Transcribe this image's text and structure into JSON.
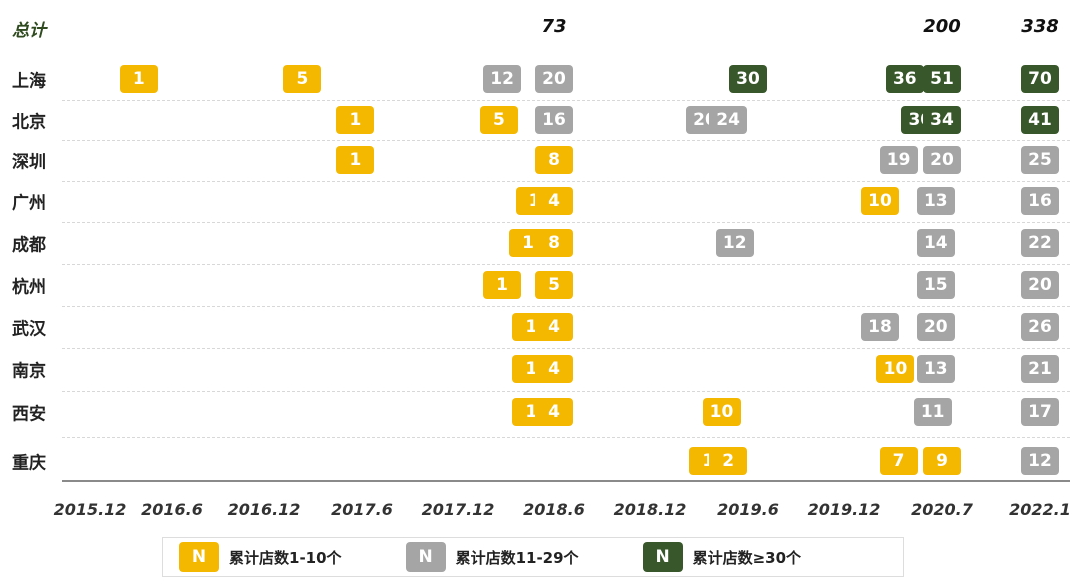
{
  "chart_data": {
    "type": "table",
    "title": "",
    "total_label": "总计",
    "x_ticks": [
      "2015.12",
      "2016.6",
      "2016.12",
      "2017.6",
      "2017.12",
      "2018.6",
      "2018.12",
      "2019.6",
      "2019.12",
      "2020.7",
      "2022.1"
    ],
    "totals": [
      {
        "x": "2018.6",
        "value": "73"
      },
      {
        "x": "2020.7",
        "value": "200"
      },
      {
        "x": "2022.1",
        "value": "338"
      }
    ],
    "rows": [
      {
        "city": "上海",
        "points": [
          {
            "x": 2016.0,
            "value": 1
          },
          {
            "x": 2016.7,
            "value": 5
          },
          {
            "x": 2017.8,
            "value": 12
          },
          {
            "x": 2018.6,
            "value": 20
          },
          {
            "x": 2019.6,
            "value": 30
          },
          {
            "x": 2020.1,
            "value": 36
          },
          {
            "x": 2020.7,
            "value": 51
          },
          {
            "x": 2022.1,
            "value": 70
          }
        ]
      },
      {
        "city": "北京",
        "points": [
          {
            "x": 2017.5,
            "value": 1
          },
          {
            "x": 2017.75,
            "value": 5
          },
          {
            "x": 2018.6,
            "value": 16
          },
          {
            "x": 2018.95,
            "value": 20
          },
          {
            "x": 2019.3,
            "value": 24
          },
          {
            "x": 2020.35,
            "value": 30
          },
          {
            "x": 2020.7,
            "value": 34
          },
          {
            "x": 2022.1,
            "value": 41
          }
        ]
      },
      {
        "city": "深圳",
        "points": [
          {
            "x": 2017.5,
            "value": 1
          },
          {
            "x": 2018.6,
            "value": 8
          },
          {
            "x": 2020.0,
            "value": 19
          },
          {
            "x": 2020.7,
            "value": 20
          },
          {
            "x": 2022.1,
            "value": 25
          }
        ]
      },
      {
        "city": "广州",
        "points": [
          {
            "x": 2018.3,
            "value": 1
          },
          {
            "x": 2018.6,
            "value": 4
          },
          {
            "x": 2019.7,
            "value": 10
          },
          {
            "x": 2020.6,
            "value": 13
          },
          {
            "x": 2022.1,
            "value": 16
          }
        ]
      },
      {
        "city": "成都",
        "points": [
          {
            "x": 2018.2,
            "value": 1
          },
          {
            "x": 2018.6,
            "value": 8
          },
          {
            "x": 2019.4,
            "value": 12
          },
          {
            "x": 2020.6,
            "value": 14
          },
          {
            "x": 2022.1,
            "value": 22
          }
        ]
      },
      {
        "city": "杭州",
        "points": [
          {
            "x": 2017.8,
            "value": 1
          },
          {
            "x": 2018.6,
            "value": 5
          },
          {
            "x": 2020.6,
            "value": 15
          },
          {
            "x": 2022.1,
            "value": 20
          }
        ]
      },
      {
        "city": "武汉",
        "points": [
          {
            "x": 2018.25,
            "value": 1
          },
          {
            "x": 2018.6,
            "value": 4
          },
          {
            "x": 2019.7,
            "value": 18
          },
          {
            "x": 2020.6,
            "value": 20
          },
          {
            "x": 2022.1,
            "value": 26
          }
        ]
      },
      {
        "city": "南京",
        "points": [
          {
            "x": 2018.25,
            "value": 1
          },
          {
            "x": 2018.6,
            "value": 4
          },
          {
            "x": 2019.95,
            "value": 10
          },
          {
            "x": 2020.6,
            "value": 13
          },
          {
            "x": 2022.1,
            "value": 21
          }
        ]
      },
      {
        "city": "西安",
        "points": [
          {
            "x": 2018.25,
            "value": 1
          },
          {
            "x": 2018.6,
            "value": 4
          },
          {
            "x": 2019.2,
            "value": 10
          },
          {
            "x": 2020.55,
            "value": 11
          },
          {
            "x": 2022.1,
            "value": 17
          }
        ]
      },
      {
        "city": "重庆",
        "points": [
          {
            "x": 2019.0,
            "value": 1
          },
          {
            "x": 2019.3,
            "value": 2
          },
          {
            "x": 2020.0,
            "value": 7
          },
          {
            "x": 2020.7,
            "value": 9
          },
          {
            "x": 2022.1,
            "value": 12
          }
        ]
      }
    ],
    "color_bins": [
      {
        "min": 1,
        "max": 10,
        "color": "#f5b800"
      },
      {
        "min": 11,
        "max": 29,
        "color": "#a5a5a5"
      },
      {
        "min": 30,
        "max": 9999,
        "color": "#38572a"
      }
    ],
    "legend": {
      "position": "bottom",
      "items": [
        {
          "swatch": "N",
          "bold_text": "累计",
          "text": "店数1-10个",
          "color": "#f5b800"
        },
        {
          "swatch": "N",
          "bold_text": "累计",
          "text": "店数11-29个",
          "color": "#a5a5a5"
        },
        {
          "swatch": "N",
          "bold_text": "累计",
          "text": "店数≥30个",
          "color": "#38572a"
        }
      ]
    }
  }
}
